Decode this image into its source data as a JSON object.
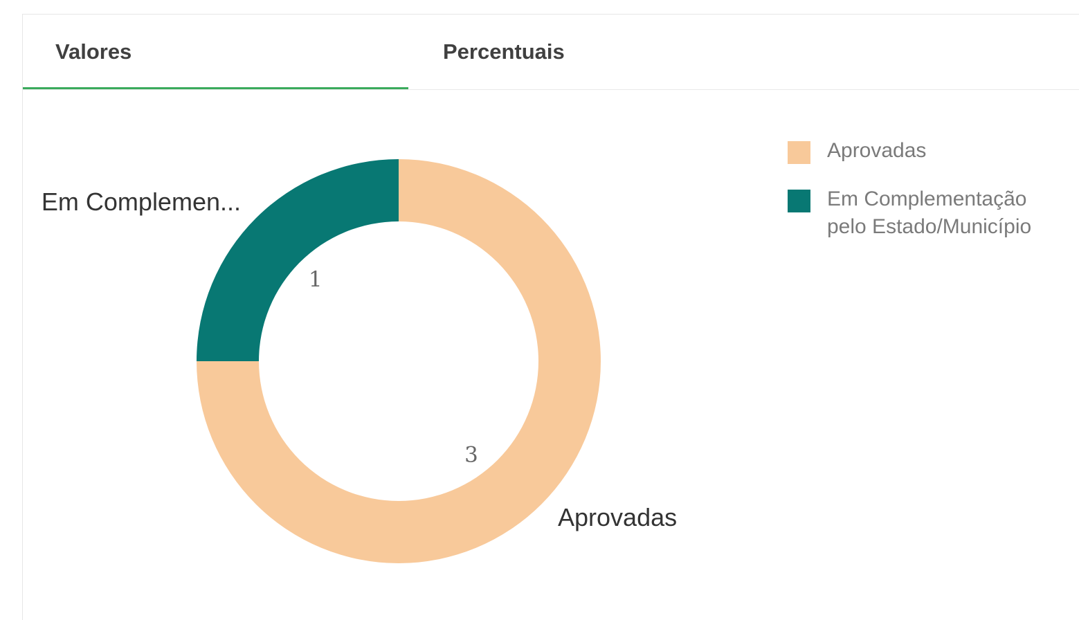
{
  "tabs": [
    {
      "label": "Valores",
      "active": true
    },
    {
      "label": "Percentuais",
      "active": false
    }
  ],
  "colors": {
    "active_tab_underline": "#3aaa5c"
  },
  "chart_data": {
    "type": "pie",
    "style": "donut",
    "slices": [
      {
        "label": "Aprovadas",
        "outside_label": "Aprovadas",
        "value": 3,
        "color": "#f8c99a"
      },
      {
        "label": "Em Complementação pelo Estado/Município",
        "outside_label": "Em Complemen...",
        "value": 1,
        "color": "#087873"
      }
    ],
    "legend": {
      "position": "top-right",
      "entries": [
        "Aprovadas",
        "Em Complementação pelo Estado/Município"
      ]
    }
  }
}
